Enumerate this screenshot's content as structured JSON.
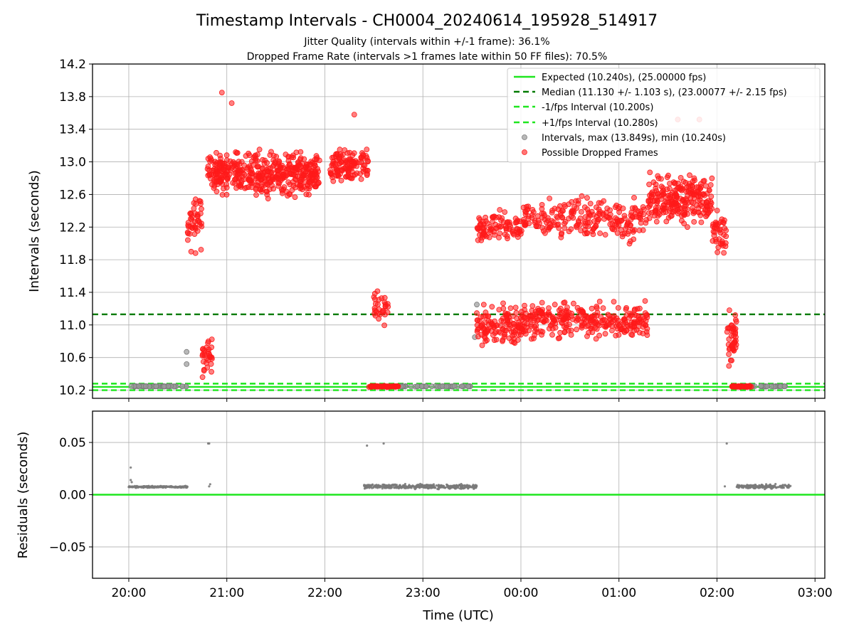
{
  "title": "Timestamp Intervals - CH0004_20240614_195928_514917",
  "subtitle_lines": [
    "Jitter Quality (intervals within +/-1 frame): 36.1%",
    "Dropped Frame Rate (intervals >1 frames late within 50 FF files): 70.5%"
  ],
  "colors": {
    "expected": "#1ee61e",
    "median": "#007a00",
    "interval_band": "#1ee61e",
    "intervals": "#9a9a9a",
    "dropped": "#ff1a1a",
    "residuals": "#7a7a7a",
    "grid": "#b0b0b0"
  },
  "chart_data": [
    {
      "type": "scatter",
      "panel": "intervals",
      "ylabel": "Intervals (seconds)",
      "ylim": [
        10.1,
        14.2
      ],
      "yticks": [
        10.2,
        10.6,
        11.0,
        11.4,
        11.8,
        12.2,
        12.6,
        13.0,
        13.4,
        13.8,
        14.2
      ],
      "ytick_labels": [
        "10.2",
        "10.6",
        "11.0",
        "11.4",
        "11.8",
        "12.2",
        "12.6",
        "13.0",
        "13.4",
        "13.8",
        "14.2"
      ],
      "xlim_hours": [
        19.63,
        27.1
      ],
      "xticks_hours": [
        20,
        21,
        22,
        23,
        24,
        25,
        26,
        27
      ],
      "grid": true,
      "legend_position": "top-right",
      "lines": [
        {
          "name": "Expected (10.240s), (25.00000 fps)",
          "y": 10.24,
          "style": "solid",
          "color_key": "expected"
        },
        {
          "name": "Median (11.130 +/- 1.103 s), (23.00077 +/- 2.15 fps)",
          "y": 11.13,
          "style": "dashed",
          "color_key": "median"
        },
        {
          "name": "-1/fps Interval (10.200s)",
          "y": 10.2,
          "style": "dashed",
          "color_key": "interval_band"
        },
        {
          "name": "+1/fps Interval (10.280s)",
          "y": 10.28,
          "style": "dashed",
          "color_key": "interval_band"
        }
      ],
      "series": [
        {
          "name": "Intervals, max (13.849s), min (10.240s)",
          "kind": "scatter",
          "color_key": "intervals",
          "segments": [
            {
              "x": [
                20.0,
                20.6
              ],
              "y_center": 10.247,
              "y_spread": 0.006,
              "n": 60
            },
            {
              "x": [
                22.5,
                23.5
              ],
              "y_center": 10.247,
              "y_spread": 0.006,
              "n": 60
            },
            {
              "x": [
                26.2,
                26.7
              ],
              "y_center": 10.247,
              "y_spread": 0.006,
              "n": 40
            }
          ],
          "points": [
            [
              20.59,
              10.67
            ],
            [
              20.59,
              10.52
            ],
            [
              23.55,
              11.25
            ],
            [
              23.53,
              10.85
            ]
          ]
        },
        {
          "name": "Possible Dropped Frames",
          "kind": "scatter",
          "color_key": "dropped",
          "segments": [
            {
              "x": [
                20.6,
                20.75
              ],
              "y_center": 12.3,
              "y_spread": 0.5,
              "n": 45
            },
            {
              "x": [
                20.75,
                20.85
              ],
              "y_center": 10.6,
              "y_spread": 0.35,
              "n": 30
            },
            {
              "x": [
                20.8,
                21.95
              ],
              "y_center": 12.85,
              "y_spread": 0.35,
              "n": 450
            },
            {
              "x": [
                22.05,
                22.45
              ],
              "y_center": 12.95,
              "y_spread": 0.3,
              "n": 120
            },
            {
              "x": [
                22.5,
                22.65
              ],
              "y_center": 11.2,
              "y_spread": 0.3,
              "n": 30
            },
            {
              "x": [
                22.45,
                22.75
              ],
              "y_center": 10.245,
              "y_spread": 0.01,
              "n": 60
            },
            {
              "x": [
                23.55,
                24.0
              ],
              "y_center": 12.2,
              "y_spread": 0.25,
              "n": 90
            },
            {
              "x": [
                23.55,
                24.0
              ],
              "y_center": 11.0,
              "y_spread": 0.35,
              "n": 120
            },
            {
              "x": [
                24.0,
                25.3
              ],
              "y_center": 12.3,
              "y_spread": 0.35,
              "n": 230
            },
            {
              "x": [
                24.0,
                25.3
              ],
              "y_center": 11.05,
              "y_spread": 0.3,
              "n": 300
            },
            {
              "x": [
                25.3,
                25.95
              ],
              "y_center": 12.55,
              "y_spread": 0.4,
              "n": 240
            },
            {
              "x": [
                25.95,
                26.1
              ],
              "y_center": 12.1,
              "y_spread": 0.35,
              "n": 40
            },
            {
              "x": [
                26.1,
                26.2
              ],
              "y_center": 10.85,
              "y_spread": 0.45,
              "n": 45
            },
            {
              "x": [
                26.15,
                26.35
              ],
              "y_center": 10.245,
              "y_spread": 0.01,
              "n": 50
            }
          ],
          "points": [
            [
              20.95,
              13.85
            ],
            [
              21.05,
              13.72
            ],
            [
              22.3,
              13.58
            ],
            [
              25.6,
              13.52
            ],
            [
              25.82,
              13.52
            ]
          ]
        }
      ]
    },
    {
      "type": "scatter",
      "panel": "residuals",
      "xlabel": "Time (UTC)",
      "ylabel": "Residuals (seconds)",
      "ylim": [
        -0.08,
        0.08
      ],
      "yticks": [
        -0.05,
        0.0,
        0.05
      ],
      "ytick_labels": [
        "−0.05",
        "0.00",
        "0.05"
      ],
      "xlim_hours": [
        19.63,
        27.1
      ],
      "xticks_hours": [
        20,
        21,
        22,
        23,
        24,
        25,
        26,
        27
      ],
      "xtick_labels": [
        "20:00",
        "21:00",
        "22:00",
        "23:00",
        "00:00",
        "01:00",
        "02:00",
        "03:00"
      ],
      "grid": true,
      "zero_line": {
        "y": 0.0,
        "color_key": "expected"
      },
      "series": [
        {
          "kind": "scatter",
          "color_key": "residuals",
          "segments": [
            {
              "x": [
                20.0,
                20.6
              ],
              "y_center": 0.0075,
              "y_spread": 0.0012,
              "n": 200
            },
            {
              "x": [
                22.4,
                23.55
              ],
              "y_center": 0.0078,
              "y_spread": 0.003,
              "n": 420
            },
            {
              "x": [
                26.2,
                26.75
              ],
              "y_center": 0.0078,
              "y_spread": 0.0028,
              "n": 180
            }
          ],
          "points": [
            [
              20.02,
              0.026
            ],
            [
              20.02,
              0.014
            ],
            [
              20.03,
              0.012
            ],
            [
              20.81,
              0.049
            ],
            [
              20.82,
              0.049
            ],
            [
              20.83,
              0.01
            ],
            [
              20.82,
              0.008
            ],
            [
              22.43,
              0.047
            ],
            [
              22.6,
              0.049
            ],
            [
              26.1,
              0.049
            ],
            [
              26.08,
              0.008
            ]
          ]
        }
      ]
    }
  ]
}
